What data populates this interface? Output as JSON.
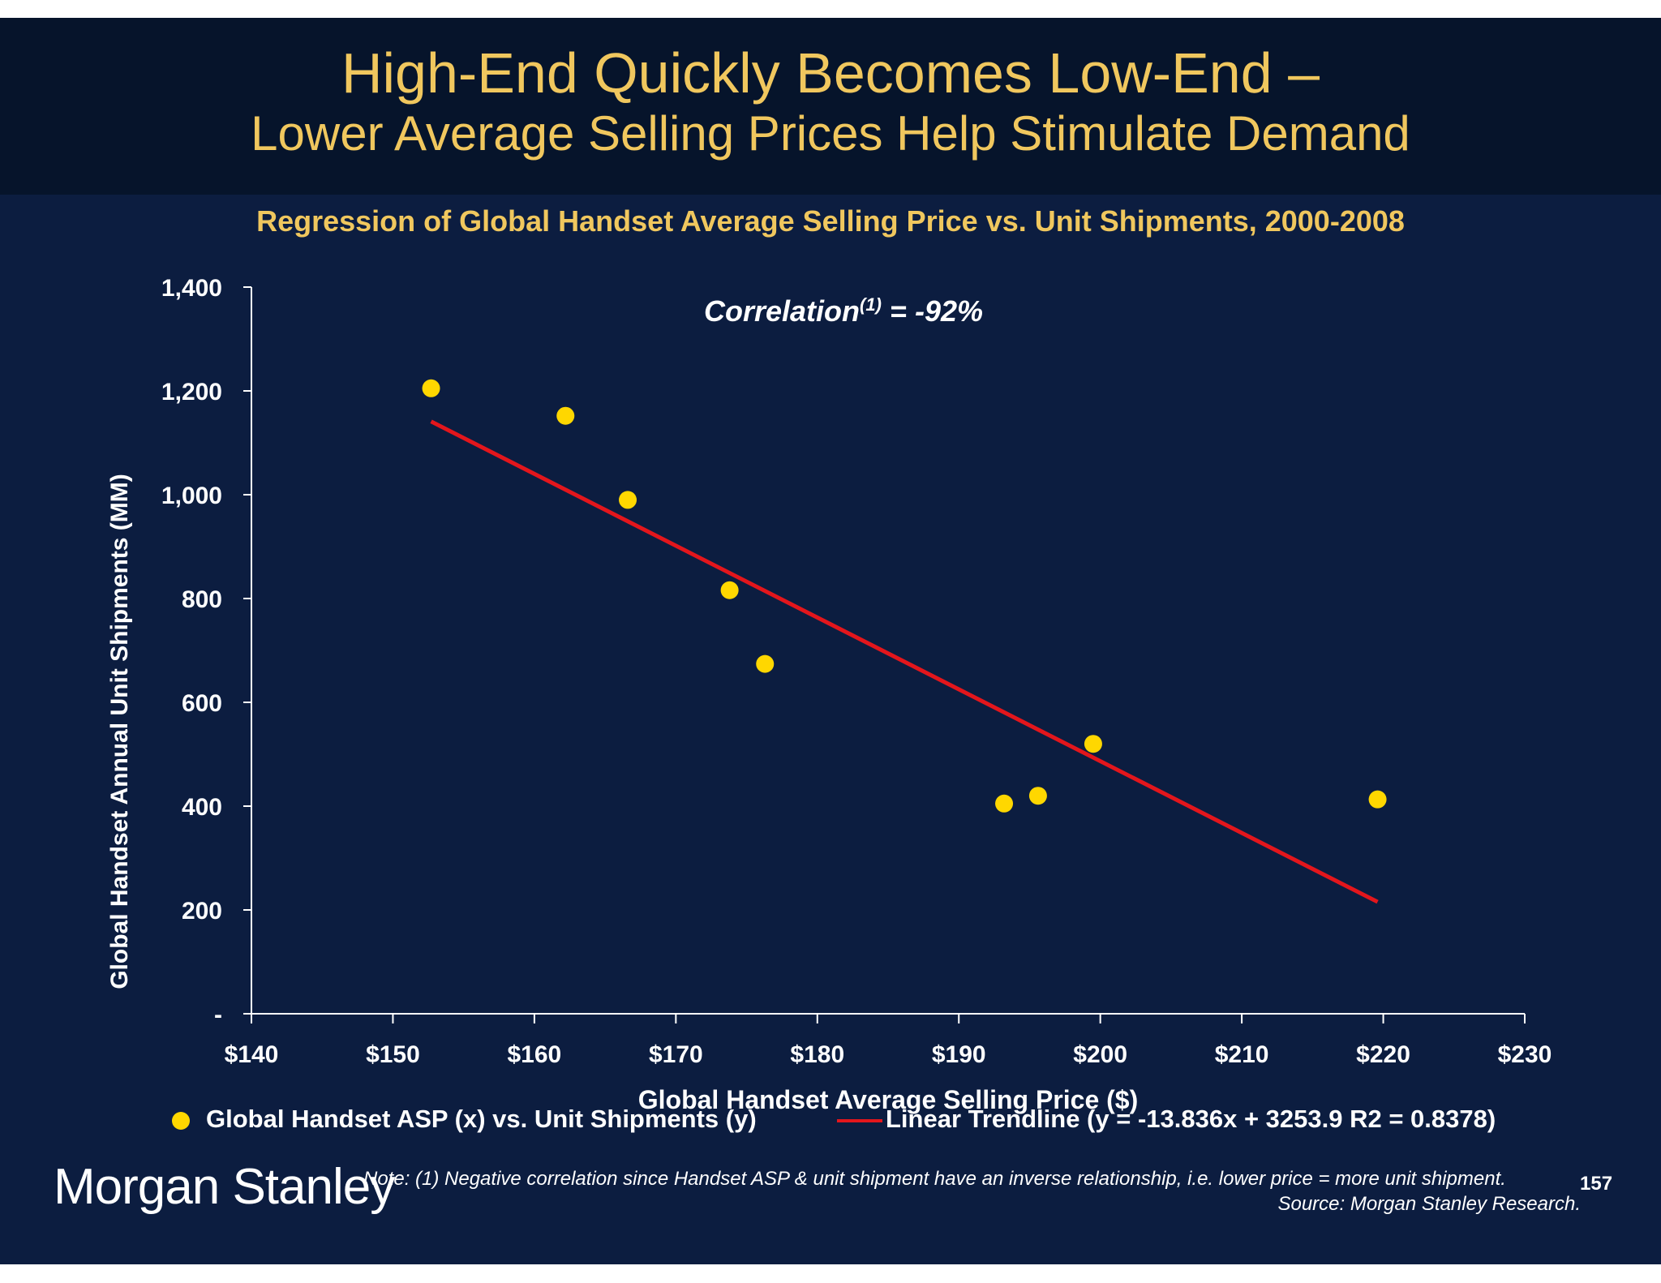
{
  "slide": {
    "title_line1": "High-End Quickly Becomes Low-End –",
    "title_line2": "Lower Average Selling Prices Help Stimulate Demand",
    "logo": "Morgan Stanley",
    "note": "Note: (1) Negative correlation since Handset ASP & unit shipment have an inverse relationship, i.e. lower price = more unit shipment.",
    "source": "Source: Morgan Stanley Research.",
    "page_number": "157"
  },
  "chart_data": {
    "type": "scatter",
    "title": "Regression of Global Handset Average Selling Price vs. Unit Shipments, 2000-2008",
    "xlabel": "Global Handset Average Selling Price ($)",
    "ylabel": "Global Handset Annual Unit Shipments (MM)",
    "xlim": [
      140,
      230
    ],
    "ylim": [
      0,
      1400
    ],
    "x_ticks": [
      140,
      150,
      160,
      170,
      180,
      190,
      200,
      210,
      220,
      230
    ],
    "x_tick_labels": [
      "$140",
      "$150",
      "$160",
      "$170",
      "$180",
      "$190",
      "$200",
      "$210",
      "$220",
      "$230"
    ],
    "y_ticks": [
      0,
      200,
      400,
      600,
      800,
      1000,
      1200,
      1400
    ],
    "y_tick_labels": [
      "-",
      "200",
      "400",
      "600",
      "800",
      "1,000",
      "1,200",
      "1,400"
    ],
    "grid": false,
    "annotation": {
      "prefix": "Correlation",
      "superscript": "(1)",
      "suffix": " = -92%"
    },
    "series": [
      {
        "name": "Global Handset ASP (x) vs. Unit Shipments (y)",
        "kind": "scatter",
        "color": "#ffd700",
        "points": [
          {
            "x": 152.7,
            "y": 1205
          },
          {
            "x": 162.2,
            "y": 1152
          },
          {
            "x": 166.6,
            "y": 990
          },
          {
            "x": 173.8,
            "y": 816
          },
          {
            "x": 176.3,
            "y": 674
          },
          {
            "x": 193.2,
            "y": 405
          },
          {
            "x": 195.6,
            "y": 420
          },
          {
            "x": 199.5,
            "y": 520
          },
          {
            "x": 219.6,
            "y": 413
          }
        ]
      },
      {
        "name": "Linear Trendline (y = -13.836x + 3253.9 R2 = 0.8378)",
        "kind": "line",
        "color": "#e3161c",
        "slope": -13.836,
        "intercept": 3253.9,
        "x_range": [
          152.7,
          219.6
        ]
      }
    ],
    "legend_position": "bottom"
  }
}
